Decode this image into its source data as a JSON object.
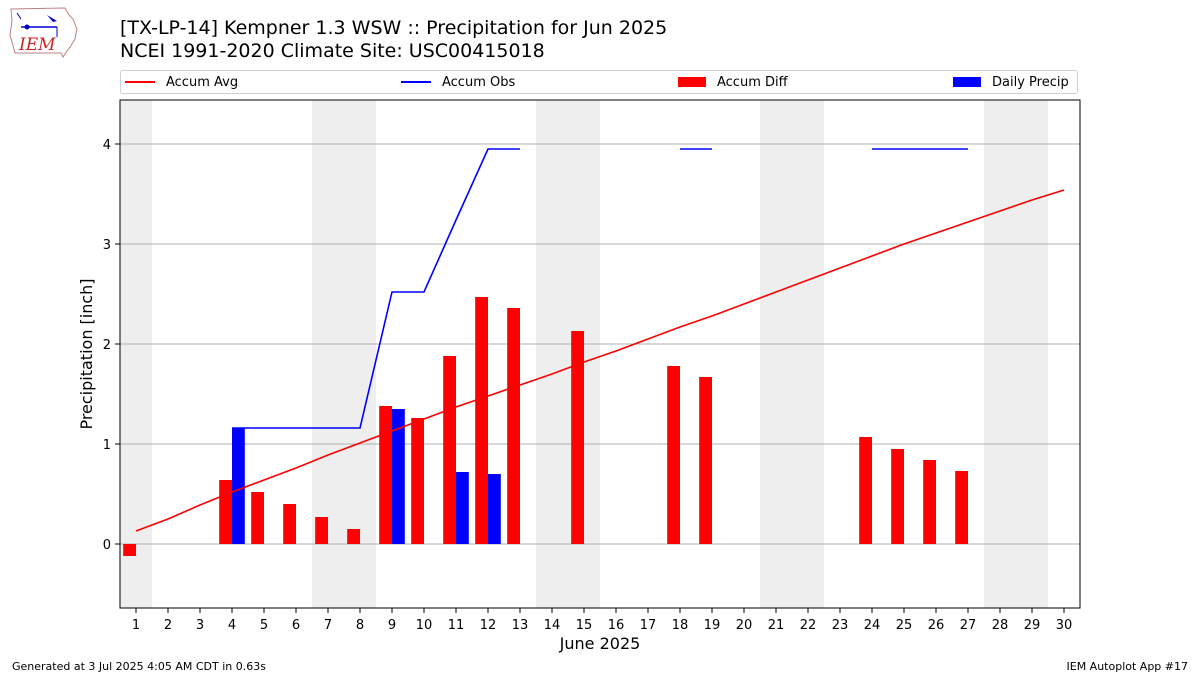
{
  "header": {
    "title_line1": "[TX-LP-14] Kempner 1.3 WSW :: Precipitation for Jun 2025",
    "title_line2": "NCEI 1991-2020 Climate Site: USC00415018",
    "logo_text": "IEM"
  },
  "legend": {
    "accum_avg": "Accum Avg",
    "accum_obs": "Accum Obs",
    "accum_diff": "Accum Diff",
    "daily_precip": "Daily Precip"
  },
  "colors": {
    "accum_avg": "#ff0000",
    "accum_obs": "#0000ff",
    "accum_diff": "#ff0000",
    "daily_precip": "#0000ff",
    "weekend_shade": "#eeeeee",
    "grid": "#b0b0b0"
  },
  "footer": {
    "left": "Generated at 3 Jul 2025 4:05 AM CDT in 0.63s",
    "right": "IEM Autoplot App #17"
  },
  "chart_data": {
    "type": "bar",
    "xlabel": "June 2025",
    "ylabel": "Precipitation [inch]",
    "xlim": [
      0.5,
      30.5
    ],
    "ylim": [
      -0.64,
      4.44
    ],
    "yticks": [
      0,
      1,
      2,
      3,
      4
    ],
    "categories": [
      1,
      2,
      3,
      4,
      5,
      6,
      7,
      8,
      9,
      10,
      11,
      12,
      13,
      14,
      15,
      16,
      17,
      18,
      19,
      20,
      21,
      22,
      23,
      24,
      25,
      26,
      27,
      28,
      29,
      30
    ],
    "grid": "horizontal",
    "legend_position": "top",
    "weekend_days": [
      [
        1,
        1
      ],
      [
        7,
        8
      ],
      [
        14,
        15
      ],
      [
        21,
        22
      ],
      [
        28,
        29
      ]
    ],
    "series": [
      {
        "name": "Accum Avg",
        "kind": "line",
        "values": [
          0.13,
          0.25,
          0.39,
          0.52,
          0.64,
          0.76,
          0.89,
          1.01,
          1.13,
          1.25,
          1.37,
          1.48,
          1.59,
          1.7,
          1.82,
          1.93,
          2.05,
          2.17,
          2.28,
          2.4,
          2.52,
          2.64,
          2.76,
          2.88,
          3.0,
          3.11,
          3.22,
          3.33,
          3.44,
          3.54
        ]
      },
      {
        "name": "Accum Obs",
        "kind": "line",
        "values": [
          null,
          null,
          null,
          1.16,
          1.16,
          1.16,
          1.16,
          1.16,
          2.52,
          2.52,
          3.24,
          3.95,
          3.95,
          null,
          null,
          null,
          null,
          3.95,
          3.95,
          null,
          null,
          null,
          null,
          3.95,
          3.95,
          3.95,
          3.95,
          null,
          null,
          null
        ]
      },
      {
        "name": "Accum Diff",
        "kind": "bar",
        "values": [
          -0.12,
          null,
          null,
          0.64,
          0.52,
          0.4,
          0.27,
          0.15,
          1.38,
          1.26,
          1.88,
          2.47,
          2.36,
          null,
          2.13,
          null,
          null,
          1.78,
          1.67,
          null,
          null,
          null,
          null,
          1.07,
          0.95,
          0.84,
          0.73,
          null,
          null,
          null
        ]
      },
      {
        "name": "Daily Precip",
        "kind": "bar",
        "values": [
          null,
          null,
          null,
          1.16,
          null,
          null,
          null,
          null,
          1.35,
          null,
          0.72,
          0.7,
          null,
          null,
          null,
          null,
          null,
          null,
          null,
          null,
          null,
          null,
          null,
          null,
          null,
          null,
          null,
          null,
          null,
          null
        ]
      }
    ]
  }
}
